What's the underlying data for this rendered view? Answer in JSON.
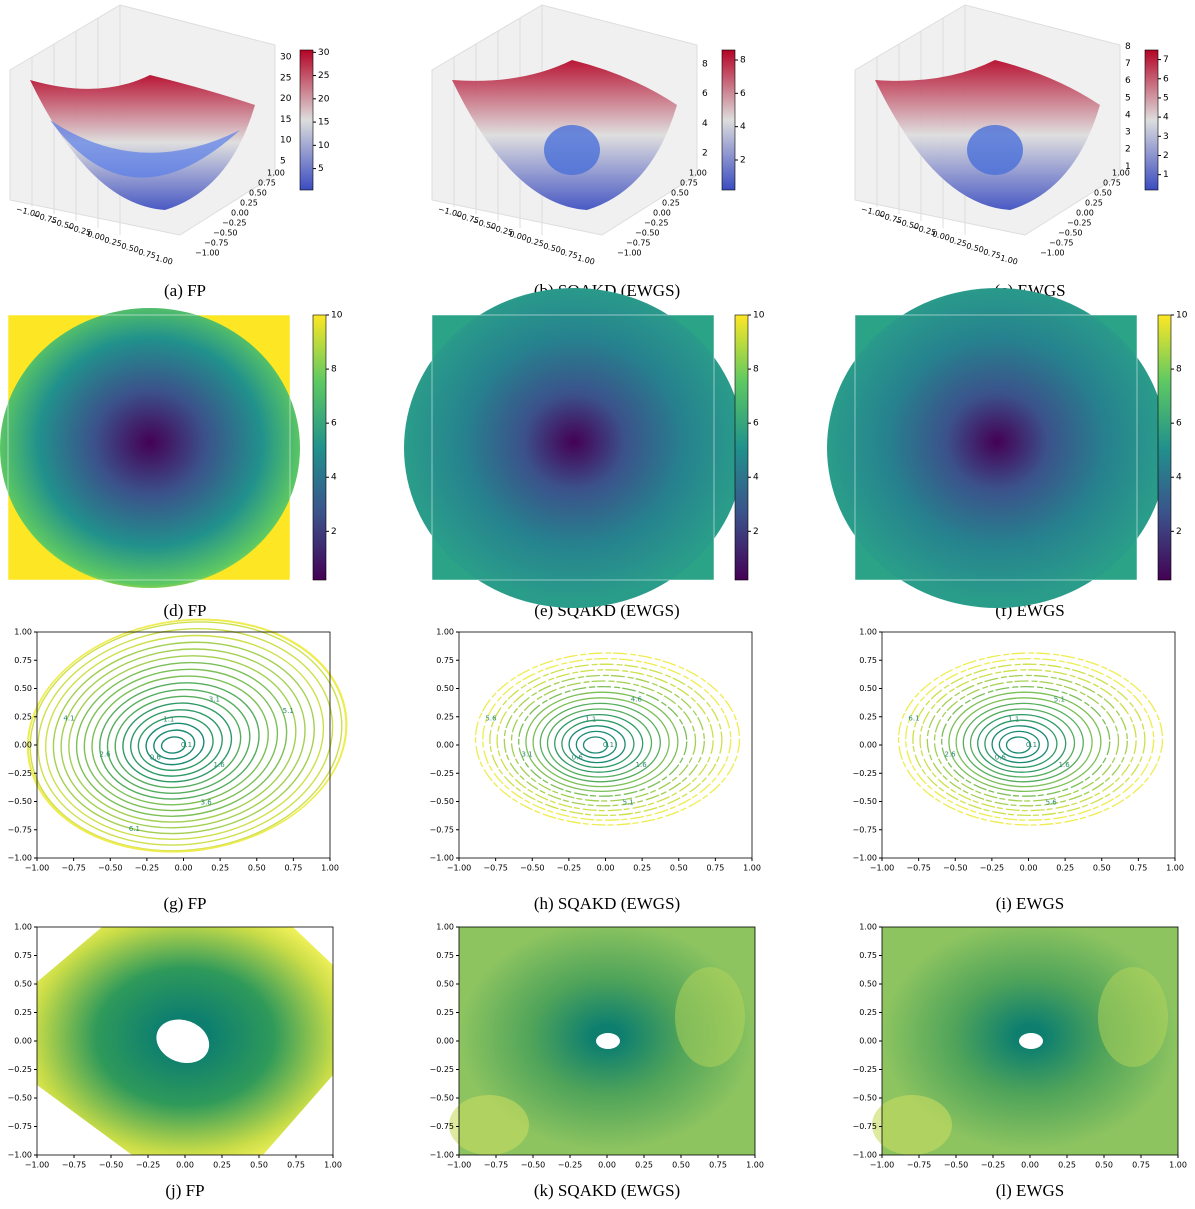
{
  "axis_ticks": [
    "−1.00",
    "−0.75",
    "−0.50",
    "−0.25",
    "0.00",
    "0.25",
    "0.50",
    "0.75",
    "1.00"
  ],
  "rows": [
    {
      "kind": "surface",
      "panels": [
        {
          "caption": "(a) FP",
          "zticks": [
            5,
            10,
            15,
            20,
            25,
            30
          ],
          "cbar_ticks": [
            5,
            10,
            15,
            20,
            25,
            30
          ],
          "cbar_range": [
            0.4,
            30.5
          ]
        },
        {
          "caption": "(b) SQAKD (EWGS)",
          "zticks": [
            2,
            4,
            6,
            8
          ],
          "cbar_ticks": [
            2,
            4,
            6,
            8
          ],
          "cbar_range": [
            0.2,
            8.6
          ]
        },
        {
          "caption": "(c) EWGS",
          "zticks": [
            1,
            2,
            3,
            4,
            5,
            6,
            7,
            8
          ],
          "cbar_ticks": [
            1,
            2,
            3,
            4,
            5,
            6,
            7
          ],
          "cbar_range": [
            0.2,
            7.5
          ]
        }
      ]
    },
    {
      "kind": "heatmap",
      "panels": [
        {
          "caption": "(d) FP",
          "cbar_ticks": [
            2,
            4,
            6,
            8,
            10
          ],
          "cbar_range": [
            0.2,
            10
          ]
        },
        {
          "caption": "(e) SQAKD (EWGS)",
          "cbar_ticks": [
            2,
            4,
            6,
            8,
            10
          ],
          "cbar_range": [
            0.2,
            10
          ]
        },
        {
          "caption": "(f) EWGS",
          "cbar_ticks": [
            2,
            4,
            6,
            8,
            10
          ],
          "cbar_range": [
            0.2,
            10
          ]
        }
      ]
    },
    {
      "kind": "contour",
      "panels": [
        {
          "caption": "(g) FP",
          "contour_labels": [
            "0.1",
            "0.6",
            "1.1",
            "1.6",
            "2.6",
            "3.1",
            "3.6",
            "4.1",
            "5.1",
            "6.1"
          ]
        },
        {
          "caption": "(h) SQAKD (EWGS)",
          "contour_labels": [
            "0.1",
            "0.6",
            "1.1",
            "1.6",
            "3.1",
            "4.6",
            "5.1",
            "5.6"
          ]
        },
        {
          "caption": "(i) EWGS",
          "contour_labels": [
            "0.1",
            "0.6",
            "1.1",
            "1.6",
            "2.6",
            "5.1",
            "5.6",
            "6.1"
          ]
        }
      ]
    },
    {
      "kind": "filled",
      "panels": [
        {
          "caption": "(j) FP"
        },
        {
          "caption": "(k) SQAKD (EWGS)"
        },
        {
          "caption": "(l) EWGS"
        }
      ]
    }
  ]
}
